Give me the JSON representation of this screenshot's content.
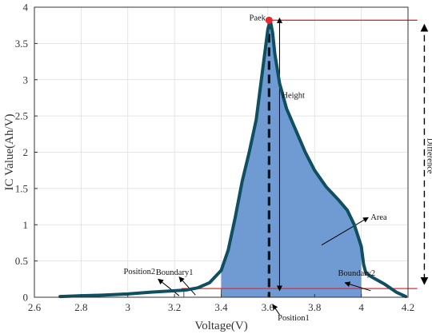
{
  "chart_data": {
    "type": "area",
    "xlabel": "Voltage(V)",
    "ylabel": "IC Value(Ah/V)",
    "xlim": [
      2.6,
      4.2
    ],
    "ylim": [
      0,
      4
    ],
    "xticks": [
      "2.6",
      "2.8",
      "3",
      "3.2",
      "3.4",
      "3.6",
      "3.8",
      "4",
      "4.2"
    ],
    "yticks": [
      "0",
      "0.5",
      "1",
      "1.5",
      "2",
      "2.5",
      "3",
      "3.5",
      "4"
    ],
    "grid": true,
    "colors": {
      "curve": "#0f4f5f",
      "fill": "#6f9bd2",
      "peak_marker": "#e8282e",
      "reference_line": "#e8282e"
    },
    "series": [
      {
        "x": [
          2.71,
          2.8,
          2.9,
          3.0,
          3.1,
          3.2,
          3.25,
          3.3,
          3.35,
          3.4,
          3.43,
          3.46,
          3.49,
          3.52,
          3.55,
          3.57,
          3.59,
          3.6,
          3.61,
          3.62,
          3.63,
          3.65,
          3.68,
          3.72,
          3.76,
          3.8,
          3.85,
          3.9,
          3.94,
          3.97,
          4.0,
          4.01,
          4.02,
          4.05,
          4.1,
          4.15,
          4.19
        ],
        "y": [
          0.01,
          0.02,
          0.03,
          0.045,
          0.07,
          0.09,
          0.1,
          0.13,
          0.2,
          0.37,
          0.65,
          1.1,
          1.6,
          2.0,
          2.45,
          2.95,
          3.45,
          3.7,
          3.82,
          3.65,
          3.35,
          2.95,
          2.6,
          2.3,
          2.0,
          1.75,
          1.52,
          1.35,
          1.2,
          1.0,
          0.7,
          0.45,
          0.33,
          0.27,
          0.18,
          0.07,
          0.01
        ]
      }
    ],
    "shaded_region": {
      "x_from": 3.4,
      "x_to": 4.0
    },
    "peak": {
      "x": 3.605,
      "y": 3.82
    },
    "boundary_level": 0.12,
    "annotations": {
      "peak": "Paek",
      "height": "Height",
      "area": "Area",
      "boundary1": "Boundary1",
      "boundary2": "Boundary2",
      "position1": "Position1",
      "position2": "Position2",
      "difference": "Difference"
    }
  }
}
